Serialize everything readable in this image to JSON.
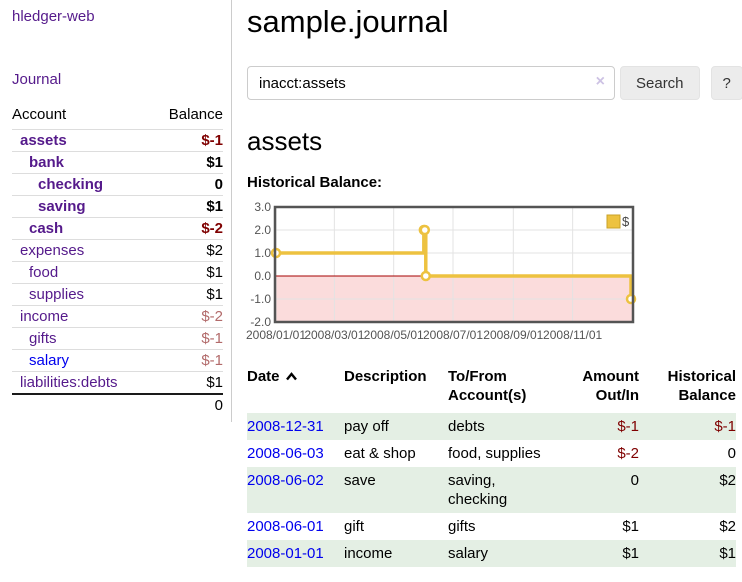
{
  "sidebar": {
    "brand": "hledger-web",
    "journal_link": "Journal",
    "accounts_table": {
      "col_account": "Account",
      "col_balance": "Balance",
      "rows": [
        {
          "name": "assets",
          "balance": "$-1"
        },
        {
          "name": "bank",
          "balance": "$1"
        },
        {
          "name": "checking",
          "balance": "0"
        },
        {
          "name": "saving",
          "balance": "$1"
        },
        {
          "name": "cash",
          "balance": "$-2"
        },
        {
          "name": "expenses",
          "balance": "$2"
        },
        {
          "name": "food",
          "balance": "$1"
        },
        {
          "name": "supplies",
          "balance": "$1"
        },
        {
          "name": "income",
          "balance": "$-2"
        },
        {
          "name": "gifts",
          "balance": "$-1"
        },
        {
          "name": "salary",
          "balance": "$-1"
        },
        {
          "name": "liabilities:debts",
          "balance": "$1"
        }
      ],
      "total": "0"
    }
  },
  "header": {
    "title": "sample.journal"
  },
  "search": {
    "query": "inacct:assets",
    "clear_icon": "×",
    "search_button": "Search",
    "help_button": "?"
  },
  "register": {
    "account_heading": "assets",
    "chart_title": "Historical Balance:",
    "table": {
      "headers": {
        "date": "Date",
        "description": "Description",
        "tofrom": "To/From Account(s)",
        "amount": "Amount Out/In",
        "balance": "Historical Balance"
      },
      "rows": [
        {
          "date": "2008-12-31",
          "description": "pay off",
          "accounts": "debts",
          "amount": "$-1",
          "balance": "$-1"
        },
        {
          "date": "2008-06-03",
          "description": "eat & shop",
          "accounts": "food, supplies",
          "amount": "$-2",
          "balance": "0"
        },
        {
          "date": "2008-06-02",
          "description": "save",
          "accounts": "saving, checking",
          "amount": "0",
          "balance": "$2"
        },
        {
          "date": "2008-06-01",
          "description": "gift",
          "accounts": "gifts",
          "amount": "$1",
          "balance": "$2"
        },
        {
          "date": "2008-01-01",
          "description": "income",
          "accounts": "salary",
          "amount": "$1",
          "balance": "$1"
        }
      ]
    }
  },
  "chart_data": {
    "type": "line",
    "step": true,
    "title": "Historical Balance:",
    "x": [
      "2008-01-01",
      "2008-06-01",
      "2008-06-02",
      "2008-06-03",
      "2008-12-31"
    ],
    "series": [
      {
        "name": "$",
        "values": [
          1,
          2,
          2,
          0,
          -1
        ]
      }
    ],
    "x_ticks": [
      "2008/01/01",
      "2008/03/01",
      "2008/05/01",
      "2008/07/01",
      "2008/09/01",
      "2008/11/01"
    ],
    "y_tick_labels": [
      "3.0",
      "2.0",
      "1.0",
      "0.0",
      "-1.0",
      "-2.0"
    ],
    "y_ticks": [
      3,
      2,
      1,
      0,
      -1,
      -2
    ],
    "ylim": [
      -2,
      3
    ],
    "xlim": [
      "2008-01-01",
      "2008-12-31"
    ],
    "grid": true,
    "legend_position": "top-right",
    "line_color": "#edc240",
    "marker_fill": "#ffffff",
    "zero_line_color": "#a40000",
    "negative_region_color": "#fbdcdc",
    "plot_border_color": "#545454",
    "tick_label_color": "#545454",
    "grid_color": "#e3e3e3"
  },
  "colors": {
    "visited_link_purple": "#551a8b",
    "link_blue": "#0000ee",
    "negative_strong": "#7f0000",
    "negative_soft": "#b26a6a",
    "row_highlight_green": "#e4efe4"
  }
}
